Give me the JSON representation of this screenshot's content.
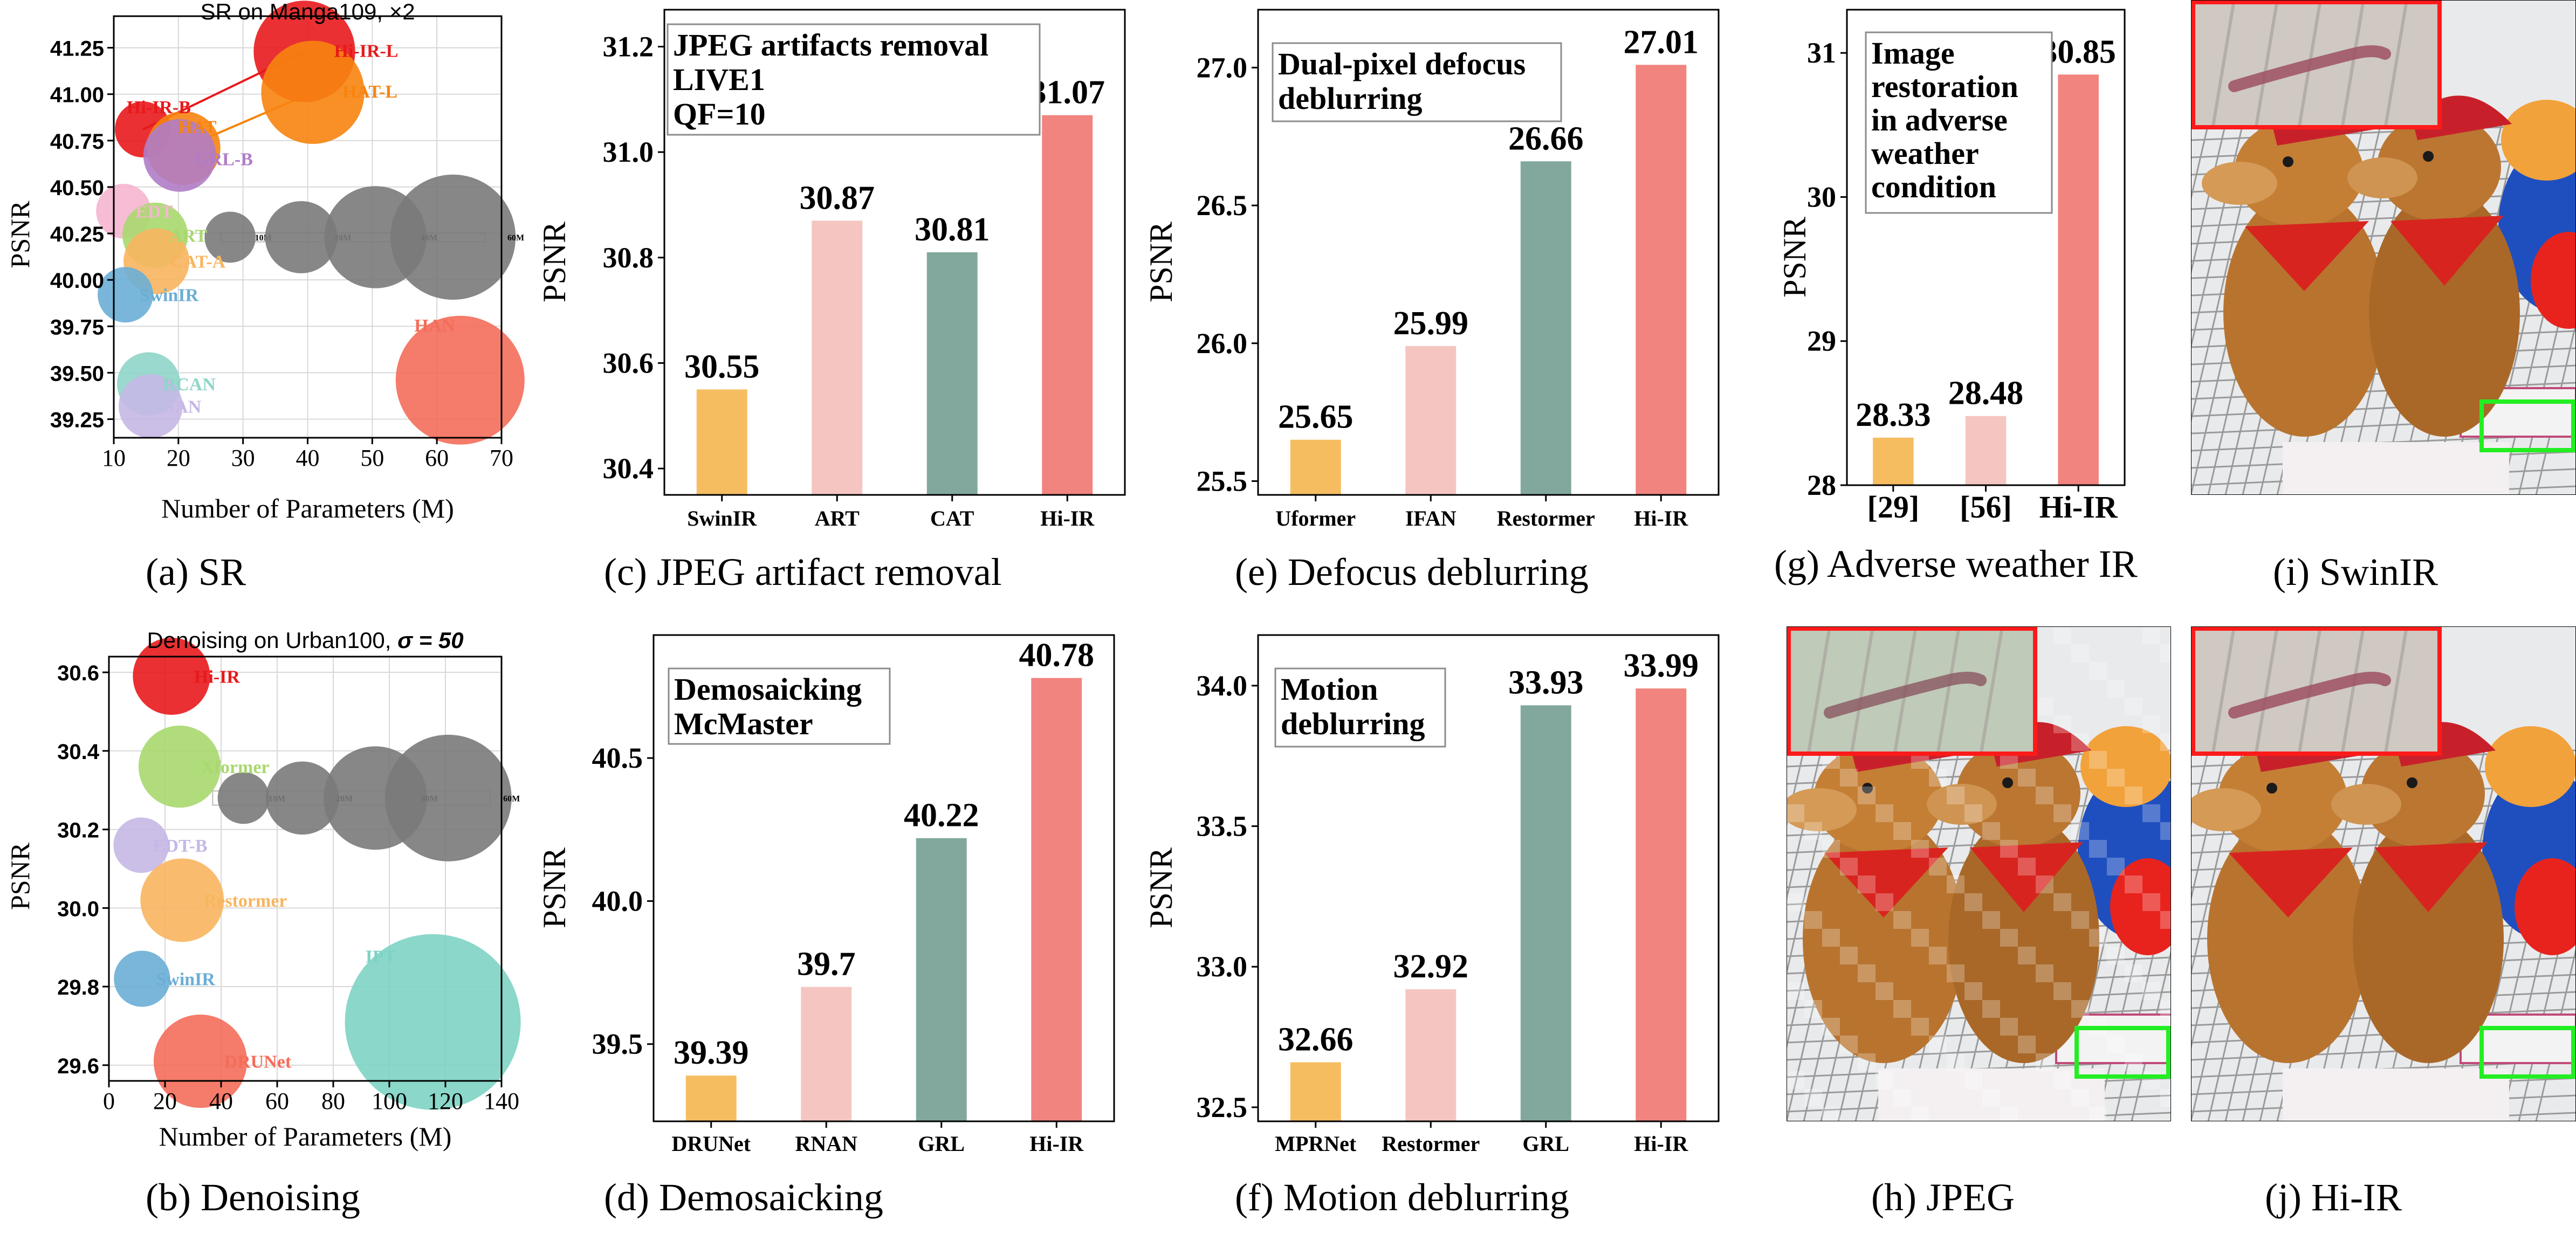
{
  "chart_data": [
    {
      "id": "a",
      "type": "scatter",
      "title": "SR on Manga109, ×2",
      "xlabel": "Number of Parameters (M)",
      "ylabel": "PSNR",
      "caption": "(a) SR",
      "xlim": [
        10,
        70
      ],
      "ylim": [
        39.15,
        41.42
      ],
      "xticks": [
        10,
        20,
        30,
        40,
        50,
        60,
        70
      ],
      "yticks": [
        39.25,
        39.5,
        39.75,
        40.0,
        40.25,
        40.5,
        40.75,
        41.0,
        41.25
      ],
      "ytick_labels": [
        "39.25",
        "39.50",
        "39.75",
        "40.00",
        "40.25",
        "40.50",
        "40.75",
        "41.00",
        "41.25"
      ],
      "grid": true,
      "points": [
        {
          "name": "Hi-IR-L",
          "x": 39.5,
          "y": 41.23,
          "size": 39.5,
          "color": "#e8191c",
          "bold": true
        },
        {
          "name": "HAT-L",
          "x": 40.8,
          "y": 41.01,
          "size": 40.8,
          "color": "#f7840f",
          "bold": true
        },
        {
          "name": "Hi-IR-B",
          "x": 14.5,
          "y": 40.81,
          "size": 12,
          "color": "#e8191c",
          "bold": true
        },
        {
          "name": "HAT",
          "x": 20.8,
          "y": 40.71,
          "size": 20.8,
          "color": "#f7840f",
          "bold": true
        },
        {
          "name": "GRL-B",
          "x": 20.2,
          "y": 40.67,
          "size": 20.2,
          "color": "#b07cc6",
          "bold": true
        },
        {
          "name": "EDT",
          "x": 11.5,
          "y": 40.37,
          "size": 11.5,
          "color": "#f5b6cf",
          "bold": false
        },
        {
          "name": "ART",
          "x": 16.4,
          "y": 40.24,
          "size": 16.4,
          "color": "#a9d86e",
          "bold": false
        },
        {
          "name": "CAT-A",
          "x": 16.6,
          "y": 40.1,
          "size": 16.6,
          "color": "#f8b55f",
          "bold": false
        },
        {
          "name": "SwinIR",
          "x": 11.8,
          "y": 39.92,
          "size": 11.8,
          "color": "#6aaed6",
          "bold": false
        },
        {
          "name": "HAN",
          "x": 63.6,
          "y": 39.46,
          "size": 63.6,
          "color": "#f46d5a",
          "bold": false
        },
        {
          "name": "RCAN",
          "x": 15.4,
          "y": 39.44,
          "size": 15.4,
          "color": "#8fd5c8",
          "bold": false
        },
        {
          "name": "SAN",
          "x": 15.7,
          "y": 39.32,
          "size": 15.7,
          "color": "#c5b8e6",
          "bold": false
        }
      ],
      "connections": [
        [
          "Hi-IR-B",
          "Hi-IR-L"
        ],
        [
          "HAT",
          "HAT-L"
        ]
      ],
      "size_legend": [
        {
          "label": "10M",
          "size": 10,
          "x": 28,
          "y": 40.23
        },
        {
          "label": "20M",
          "size": 20,
          "x": 39,
          "y": 40.23
        },
        {
          "label": "40M",
          "size": 40,
          "x": 50.5,
          "y": 40.23
        },
        {
          "label": "60M",
          "size": 60,
          "x": 62.5,
          "y": 40.23
        }
      ],
      "size_legend_box": {
        "x0": 26.5,
        "x1": 67.5,
        "y0": 40.205,
        "y1": 40.255
      }
    },
    {
      "id": "b",
      "type": "scatter",
      "title": "Denoising on Urban100, ",
      "title_math": "σ = 50",
      "xlabel": "Number of Parameters (M)",
      "ylabel": "PSNR",
      "caption": "(b) Denoising",
      "xlim": [
        0,
        140
      ],
      "ylim": [
        29.56,
        30.64
      ],
      "xticks": [
        0,
        20,
        40,
        60,
        80,
        100,
        120,
        140
      ],
      "yticks": [
        29.6,
        29.8,
        30.0,
        30.2,
        30.4,
        30.6
      ],
      "ytick_labels": [
        "29.6",
        "29.8",
        "30.0",
        "30.2",
        "30.4",
        "30.6"
      ],
      "grid": true,
      "points": [
        {
          "name": "Hi-IR",
          "x": 22.3,
          "y": 30.59,
          "size": 22.3,
          "color": "#e8191c",
          "bold": true
        },
        {
          "name": "Xformer",
          "x": 25.2,
          "y": 30.36,
          "size": 25.2,
          "color": "#a9d86e",
          "bold": false
        },
        {
          "name": "EDT-B",
          "x": 11.5,
          "y": 30.16,
          "size": 11.5,
          "color": "#c5b8e6",
          "bold": false
        },
        {
          "name": "Restormer",
          "x": 26.1,
          "y": 30.02,
          "size": 26.1,
          "color": "#f8b55f",
          "bold": false
        },
        {
          "name": "SwinIR",
          "x": 11.8,
          "y": 29.82,
          "size": 11.8,
          "color": "#6aaed6",
          "bold": false
        },
        {
          "name": "IPT",
          "x": 115.5,
          "y": 29.71,
          "size": 115.5,
          "color": "#7ed3c4",
          "bold": false
        },
        {
          "name": "DRUNet",
          "x": 32.6,
          "y": 29.61,
          "size": 32.6,
          "color": "#f46d5a",
          "bold": false
        }
      ],
      "connections": [],
      "size_legend": [
        {
          "label": "10M",
          "size": 10,
          "x": 48,
          "y": 30.28
        },
        {
          "label": "20M",
          "size": 20,
          "x": 69,
          "y": 30.28
        },
        {
          "label": "40M",
          "size": 40,
          "x": 95,
          "y": 30.28
        },
        {
          "label": "60M",
          "size": 60,
          "x": 121,
          "y": 30.28
        }
      ],
      "size_legend_box": {
        "x0": 37,
        "x1": 136,
        "y0": 30.262,
        "y1": 30.298
      }
    },
    {
      "id": "c",
      "type": "bar",
      "title_box": [
        "JPEG artifacts removal",
        "LIVE1",
        "QF=10"
      ],
      "ylabel": "PSNR",
      "caption": "(c) JPEG artifact removal",
      "categories": [
        "SwinIR",
        "ART",
        "CAT",
        "Hi-IR"
      ],
      "values": [
        30.55,
        30.87,
        30.81,
        31.07
      ],
      "value_labels": [
        "30.55",
        "30.87",
        "30.81",
        "31.07"
      ],
      "colors": [
        "#f6bd60",
        "#f5c6c1",
        "#82a89d",
        "#f1847f"
      ],
      "ylim": [
        30.35,
        31.27
      ],
      "yticks": [
        30.4,
        30.6,
        30.8,
        31.0,
        31.2
      ],
      "ytick_labels": [
        "30.4",
        "30.6",
        "30.8",
        "31.0",
        "31.2"
      ]
    },
    {
      "id": "d",
      "type": "bar",
      "title_box": [
        "Demosaicking",
        "McMaster"
      ],
      "ylabel": "PSNR",
      "caption": "(d) Demosaicking",
      "categories": [
        "DRUNet",
        "RNAN",
        "GRL",
        "Hi-IR"
      ],
      "values": [
        39.39,
        39.7,
        40.22,
        40.78
      ],
      "value_labels": [
        "39.39",
        "39.7",
        "40.22",
        "40.78"
      ],
      "colors": [
        "#f6bd60",
        "#f5c6c1",
        "#82a89d",
        "#f1847f"
      ],
      "ylim": [
        39.23,
        40.93
      ],
      "yticks": [
        39.5,
        40.0,
        40.5
      ],
      "ytick_labels": [
        "39.5",
        "40.0",
        "40.5"
      ]
    },
    {
      "id": "e",
      "type": "bar",
      "title_box": [
        "Dual-pixel defocus",
        "deblurring"
      ],
      "ylabel": "PSNR",
      "caption": "(e) Defocus deblurring",
      "categories": [
        "Uformer",
        "IFAN",
        "Restormer",
        "Hi-IR"
      ],
      "values": [
        25.65,
        25.99,
        26.66,
        27.01
      ],
      "value_labels": [
        "25.65",
        "25.99",
        "26.66",
        "27.01"
      ],
      "colors": [
        "#f6bd60",
        "#f5c6c1",
        "#82a89d",
        "#f1847f"
      ],
      "ylim": [
        25.45,
        27.21
      ],
      "yticks": [
        25.5,
        26.0,
        26.5,
        27.0
      ],
      "ytick_labels": [
        "25.5",
        "26.0",
        "26.5",
        "27.0"
      ]
    },
    {
      "id": "f",
      "type": "bar",
      "title_box": [
        "Motion",
        "deblurring"
      ],
      "ylabel": "PSNR",
      "caption": "(f) Motion deblurring",
      "categories": [
        "MPRNet",
        "Restormer",
        "GRL",
        "Hi-IR"
      ],
      "values": [
        32.66,
        32.92,
        33.93,
        33.99
      ],
      "value_labels": [
        "32.66",
        "32.92",
        "33.93",
        "33.99"
      ],
      "colors": [
        "#f6bd60",
        "#f5c6c1",
        "#82a89d",
        "#f1847f"
      ],
      "ylim": [
        32.45,
        34.18
      ],
      "yticks": [
        32.5,
        33.0,
        33.5,
        34.0
      ],
      "ytick_labels": [
        "32.5",
        "33.0",
        "33.5",
        "34.0"
      ]
    },
    {
      "id": "g",
      "type": "bar",
      "title_box": [
        "Image",
        "restoration",
        "in adverse",
        "weather",
        "condition"
      ],
      "ylabel": "PSNR",
      "caption": "(g) Adverse weather IR",
      "categories": [
        "[29]",
        "[56]",
        "Hi-IR"
      ],
      "values": [
        28.33,
        28.48,
        30.85
      ],
      "value_labels": [
        "28.33",
        "28.48",
        "30.85"
      ],
      "colors": [
        "#f6bd60",
        "#f5c6c1",
        "#f1847f"
      ],
      "ylim": [
        28.0,
        31.3
      ],
      "yticks": [
        28,
        29,
        30,
        31
      ],
      "ytick_labels": [
        "28",
        "29",
        "30",
        "31"
      ]
    }
  ],
  "image_panels": [
    {
      "id": "i",
      "caption": "(i) SwinIR",
      "content": "toy plush dogs crop"
    },
    {
      "id": "h",
      "caption": "(h) JPEG",
      "content": "toy plush dogs crop"
    },
    {
      "id": "j",
      "caption": "(j) Hi-IR",
      "content": "toy plush dogs crop"
    }
  ],
  "colors": {
    "grid": "#d8d8d8",
    "axis": "#000000",
    "box_border": "#8c8c8c",
    "zoom_red": "#ff1a1a",
    "zoom_green": "#22ee22"
  }
}
